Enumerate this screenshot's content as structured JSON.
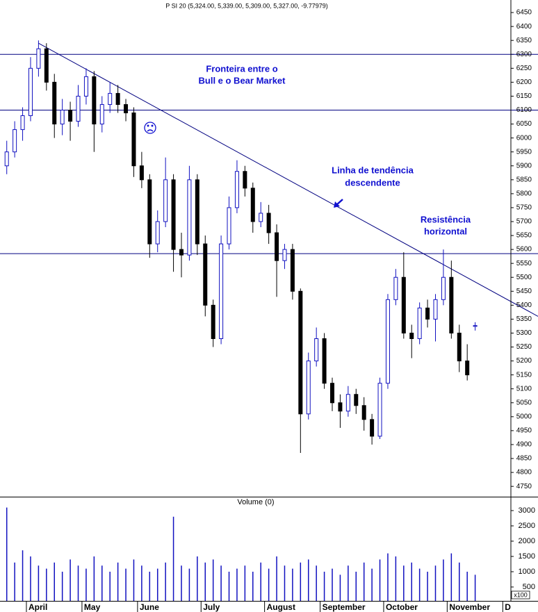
{
  "chart_data": [
    {
      "type": "candlestick",
      "title": "P SI 20 (5,324.00, 5,339.00, 5,309.00, 5,327.00, -9.77979)",
      "color": "#1010c0",
      "down_color": "#000000",
      "open": [
        5900,
        5950,
        6030,
        6080,
        6250,
        6320,
        6200,
        6050,
        6100,
        6060,
        6150,
        6220,
        6050,
        6120,
        6160,
        6120,
        6090,
        5900,
        5850,
        5620,
        5700,
        5850,
        5600,
        5580,
        5850,
        5620,
        5400,
        5280,
        5620,
        5750,
        5880,
        5820,
        5700,
        5730,
        5660,
        5560,
        5600,
        5450,
        5010,
        5200,
        5280,
        5120,
        5050,
        5020,
        5080,
        5040,
        4990,
        4930,
        5120,
        5420,
        5500,
        5300,
        5280,
        5390,
        5350,
        5420,
        5500,
        5300,
        5200,
        5324,
        null,
        null,
        null,
        null
      ],
      "high": [
        5990,
        6060,
        6110,
        6290,
        6350,
        6340,
        6230,
        6140,
        6130,
        6190,
        6250,
        6240,
        6150,
        6200,
        6190,
        6140,
        6110,
        5950,
        5870,
        5740,
        5930,
        5870,
        5660,
        5900,
        5870,
        5650,
        5420,
        5650,
        5790,
        5920,
        5900,
        5840,
        5770,
        5760,
        5690,
        5620,
        5620,
        5460,
        5230,
        5320,
        5300,
        5140,
        5080,
        5110,
        5100,
        5070,
        5010,
        5140,
        5440,
        5530,
        5590,
        5330,
        5410,
        5420,
        5440,
        5600,
        5560,
        5330,
        5260,
        5339,
        null,
        null,
        null,
        null
      ],
      "low": [
        5870,
        5930,
        5990,
        6060,
        6220,
        6170,
        6000,
        6010,
        5990,
        6040,
        6120,
        5950,
        6020,
        6090,
        6090,
        6060,
        5860,
        5820,
        5570,
        5590,
        5680,
        5520,
        5500,
        5560,
        5580,
        5360,
        5250,
        5260,
        5600,
        5730,
        5790,
        5660,
        5680,
        5620,
        5430,
        5530,
        5420,
        4870,
        4990,
        5180,
        5100,
        5020,
        4960,
        5000,
        5010,
        4950,
        4900,
        4920,
        5100,
        5400,
        5280,
        5210,
        5260,
        5320,
        5270,
        5400,
        5280,
        5160,
        5130,
        5309,
        null,
        null,
        null,
        null
      ],
      "close": [
        5950,
        6030,
        6080,
        6250,
        6320,
        6200,
        6050,
        6100,
        6060,
        6150,
        6220,
        6050,
        6120,
        6160,
        6120,
        6090,
        5900,
        5850,
        5620,
        5700,
        5850,
        5600,
        5580,
        5850,
        5620,
        5400,
        5280,
        5620,
        5750,
        5880,
        5820,
        5700,
        5730,
        5660,
        5560,
        5600,
        5450,
        5010,
        5200,
        5280,
        5120,
        5050,
        5020,
        5080,
        5040,
        4990,
        4930,
        5120,
        5420,
        5500,
        5300,
        5280,
        5390,
        5350,
        5420,
        5500,
        5300,
        5200,
        5150,
        5327,
        null,
        null,
        null,
        null
      ],
      "ylim": [
        4713,
        6495
      ],
      "yticks": [
        4750,
        4800,
        4850,
        4900,
        4950,
        5000,
        5050,
        5100,
        5150,
        5200,
        5250,
        5300,
        5350,
        5400,
        5450,
        5500,
        5550,
        5600,
        5650,
        5700,
        5750,
        5800,
        5850,
        5900,
        5950,
        6000,
        6050,
        6100,
        6150,
        6200,
        6250,
        6300,
        6350,
        6400,
        6450
      ],
      "hlines": [
        6300,
        6100,
        5585
      ],
      "line_color": "#000080",
      "trendline": {
        "x": [
          4,
          63
        ],
        "y": [
          6340,
          5421
        ]
      },
      "annotations": [
        [
          "Fronteira entre o",
          "Bull e o Bear Market"
        ],
        [
          "Linha de tendência",
          "descendente"
        ],
        [
          "Resistência",
          "horizontal"
        ]
      ]
    },
    {
      "type": "bar",
      "title": "Volume (0)",
      "unit_label": "x100",
      "color": "#1010c0",
      "categories": [
        null,
        null,
        null,
        "April",
        null,
        null,
        null,
        null,
        null,
        null,
        "May",
        null,
        null,
        null,
        null,
        null,
        null,
        "June",
        null,
        null,
        null,
        null,
        null,
        null,
        null,
        "July",
        null,
        null,
        null,
        null,
        null,
        null,
        null,
        "August",
        null,
        null,
        null,
        null,
        null,
        null,
        "September",
        null,
        null,
        null,
        null,
        null,
        null,
        null,
        "October",
        null,
        null,
        null,
        null,
        null,
        null,
        null,
        "November",
        null,
        null,
        null,
        null,
        null,
        null,
        "D"
      ],
      "values": [
        3100,
        1300,
        1700,
        1500,
        1200,
        1100,
        1300,
        1000,
        1400,
        1200,
        1100,
        1500,
        1200,
        1000,
        1300,
        1100,
        1400,
        1200,
        1000,
        1100,
        1300,
        2800,
        1200,
        1100,
        1500,
        1300,
        1400,
        1200,
        1000,
        1100,
        1200,
        1000,
        1300,
        1100,
        1500,
        1200,
        1100,
        1300,
        1400,
        1200,
        1000,
        1100,
        900,
        1200,
        1000,
        1300,
        1100,
        1400,
        1600,
        1500,
        1200,
        1300,
        1100,
        1000,
        1200,
        1400,
        1600,
        1300,
        1000,
        900,
        null,
        null,
        null,
        null
      ],
      "ylim": [
        45,
        3455
      ],
      "yticks": [
        500,
        1000,
        1500,
        2000,
        2500,
        3000
      ]
    }
  ]
}
